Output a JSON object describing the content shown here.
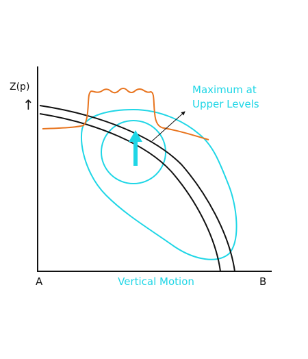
{
  "diagram": {
    "y_axis_label": "Z(p)",
    "y_axis_arrow": "↑",
    "x_axis_label_left": "A",
    "x_axis_label_right": "B",
    "x_axis_title": "Vertical Motion",
    "annotation_line1": "Maximum at",
    "annotation_line2": "Upper Levels",
    "colors": {
      "axes": "#111111",
      "arcs": "#111111",
      "contours": "#1fd6e6",
      "profile": "#e8741e",
      "updraft_arrow": "#1fd6e6",
      "annotation": "#1fd6e6"
    }
  }
}
